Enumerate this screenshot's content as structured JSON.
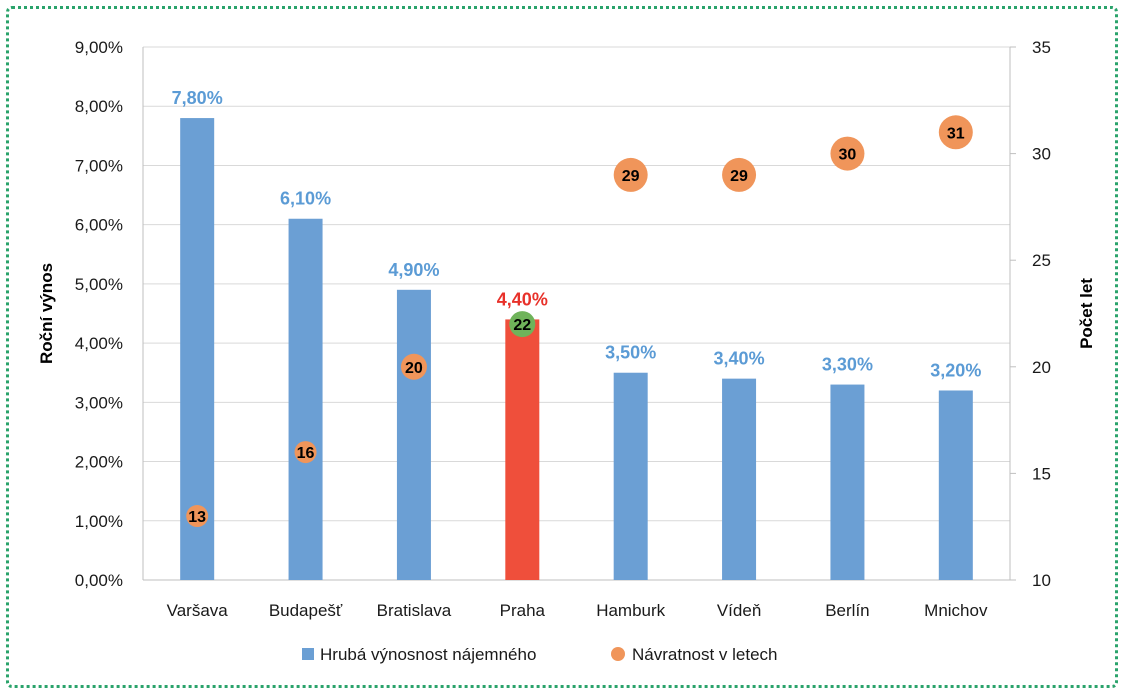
{
  "chart_data": {
    "type": "bar",
    "categories": [
      "Varšava",
      "Budapešť",
      "Bratislava",
      "Praha",
      "Hamburk",
      "Vídeň",
      "Berlín",
      "Mnichov"
    ],
    "series": [
      {
        "name": "Hrubá výnosnost nájemného",
        "type": "bar",
        "axis": "left",
        "values": [
          7.8,
          6.1,
          4.9,
          4.4,
          3.5,
          3.4,
          3.3,
          3.2
        ],
        "labels": [
          "7,80%",
          "6,10%",
          "4,90%",
          "4,40%",
          "3,50%",
          "3,40%",
          "3,30%",
          "3,20%"
        ],
        "color": "#6b9fd4",
        "highlight_index": 3,
        "highlight_color": "#ef4f3b",
        "label_color": "#5b9bd5",
        "highlight_label_color": "#e8312a"
      },
      {
        "name": "Návratnost v letech",
        "type": "scatter",
        "axis": "right",
        "values": [
          13,
          16,
          20,
          22,
          29,
          29,
          30,
          31
        ],
        "color": "#f0955a",
        "highlight_index": 3,
        "highlight_color": "#6fb35a"
      }
    ],
    "y_left": {
      "label": "Roční výnos",
      "ylim": [
        0,
        9
      ],
      "ticks": [
        "0,00%",
        "1,00%",
        "2,00%",
        "3,00%",
        "4,00%",
        "5,00%",
        "6,00%",
        "7,00%",
        "8,00%",
        "9,00%"
      ]
    },
    "y_right": {
      "label": "Počet let",
      "ylim": [
        10,
        35
      ],
      "ticks": [
        "10",
        "15",
        "20",
        "25",
        "30",
        "35"
      ]
    },
    "grid": true,
    "legend": "bottom"
  }
}
